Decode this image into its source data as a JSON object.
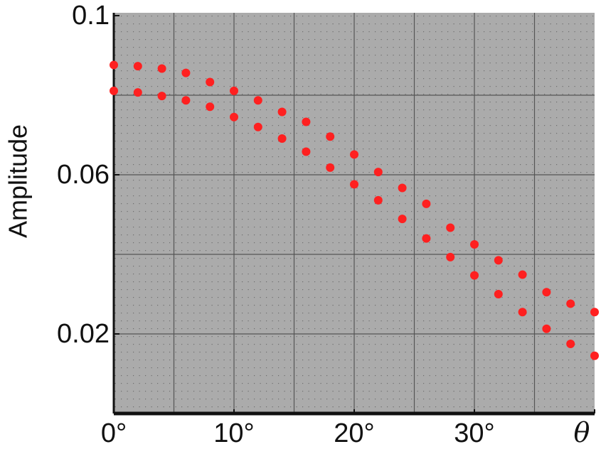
{
  "chart_data": {
    "type": "scatter",
    "ylabel": "Amplitude",
    "x": [
      0,
      2,
      4,
      6,
      8,
      10,
      12,
      14,
      16,
      18,
      20,
      22,
      24,
      26,
      28,
      30,
      32,
      34,
      36,
      38,
      40
    ],
    "series": [
      {
        "color": "#ff2020",
        "values": [
          0.0876,
          0.0873,
          0.0867,
          0.0856,
          0.0833,
          0.0811,
          0.0787,
          0.0758,
          0.0733,
          0.0696,
          0.0651,
          0.0607,
          0.0567,
          0.0527,
          0.0467,
          0.0425,
          0.0385,
          0.0349,
          0.0305,
          0.0276,
          0.0255
        ]
      },
      {
        "color": "#ff2020",
        "values": [
          0.0811,
          0.0807,
          0.0798,
          0.0787,
          0.0771,
          0.0745,
          0.072,
          0.0691,
          0.0658,
          0.0618,
          0.0576,
          0.0536,
          0.0489,
          0.044,
          0.0393,
          0.0347,
          0.03,
          0.0255,
          0.0213,
          0.0175,
          0.0145
        ]
      }
    ],
    "xlim": [
      0,
      40
    ],
    "ylim": [
      0,
      0.1
    ],
    "xticks": [
      {
        "value": 0,
        "label": "0°"
      },
      {
        "value": 10,
        "label": "10°"
      },
      {
        "value": 20,
        "label": "20°"
      },
      {
        "value": 30,
        "label": "30°"
      },
      {
        "value": 40,
        "label": "θ"
      }
    ],
    "yticks": [
      0.02,
      0.06,
      0.1
    ],
    "xgrid": [
      5,
      10,
      15,
      20,
      25,
      30,
      35
    ],
    "ygrid": [
      0.02,
      0.04,
      0.06,
      0.08
    ],
    "grid": true
  }
}
